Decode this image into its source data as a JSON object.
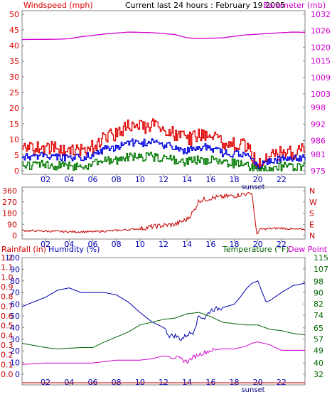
{
  "header": {
    "wind_label": "Windspeed (mph)",
    "title": "Current last 24 hours : February 19 2005",
    "baro_label": "Barometer (mb)"
  },
  "colors": {
    "wind": "#e00000",
    "wind_avg": "#0000e0",
    "wind_min": "#007a00",
    "baro": "#d000d0",
    "direction": "#c80000",
    "humidity": "#0000b0",
    "temperature": "#006400",
    "dewpoint": "#d000d0",
    "rainfall": "#cc0000",
    "frame": "#808080"
  },
  "chart_data": [
    {
      "type": "line",
      "title": "Current last 24 hours : February 19 2005",
      "x_ticks": [
        "02",
        "04",
        "06",
        "08",
        "10",
        "12",
        "14",
        "16",
        "18",
        "20",
        "22"
      ],
      "x_range_hours": [
        0,
        24
      ],
      "annotation": "sunset",
      "annotation_hour": 19.6,
      "ylabel_left": "Windspeed (mph)",
      "ylim_left": [
        0,
        50
      ],
      "yticks_left": [
        0,
        5,
        10,
        15,
        20,
        25,
        30,
        35,
        40,
        45,
        50
      ],
      "ylabel_right": "Barometer (mb)",
      "ylim_right": [
        975,
        1032
      ],
      "yticks_right": [
        975,
        981,
        986,
        992,
        998,
        1003,
        1009,
        1015,
        1020,
        1026,
        1032
      ],
      "series": [
        {
          "name": "Windspeed (mph)",
          "axis": "left",
          "hours": [
            0,
            2,
            4,
            6,
            7,
            8,
            9,
            10,
            11,
            12,
            13,
            14,
            15,
            16,
            17,
            18,
            19,
            19.5,
            20,
            21,
            22,
            23,
            24
          ],
          "values": [
            9,
            10,
            8,
            10,
            13,
            14,
            17,
            16,
            17,
            15,
            14,
            12,
            14,
            14,
            11,
            11,
            10,
            7,
            4,
            7,
            8,
            8,
            9
          ]
        },
        {
          "name": "Barometer (mb)",
          "axis": "right",
          "hours": [
            0,
            3,
            4,
            5,
            7,
            9,
            11,
            13,
            14,
            15,
            17,
            19,
            21,
            22,
            23,
            24
          ],
          "values": [
            1022.8,
            1022.9,
            1023.1,
            1023.8,
            1024.8,
            1025.5,
            1025.3,
            1024.6,
            1023.4,
            1023.1,
            1023.4,
            1024.5,
            1025.0,
            1025.3,
            1025.5,
            1025.4
          ]
        }
      ]
    },
    {
      "type": "line",
      "x_ticks": [
        "02",
        "04",
        "06",
        "08",
        "10",
        "12",
        "14",
        "16",
        "18",
        "20",
        "22"
      ],
      "x_range_hours": [
        0,
        24
      ],
      "ylim_left": [
        0,
        360
      ],
      "yticks_left": [
        0,
        90,
        180,
        270,
        360
      ],
      "yticks_right_labels": [
        "N",
        "W",
        "S",
        "E",
        "N"
      ],
      "series": [
        {
          "name": "Wind direction",
          "hours": [
            0,
            2,
            4,
            6,
            8,
            10,
            11,
            12,
            13,
            14,
            14.6,
            15,
            16,
            17,
            18,
            19.3,
            19.5,
            19.9,
            20.2,
            21,
            22,
            23,
            24
          ],
          "values": [
            40,
            35,
            30,
            30,
            40,
            55,
            70,
            80,
            90,
            130,
            200,
            280,
            300,
            310,
            320,
            340,
            340,
            10,
            50,
            55,
            60,
            50,
            50
          ]
        }
      ]
    },
    {
      "type": "line",
      "x_ticks": [
        "02",
        "04",
        "06",
        "08",
        "10",
        "12",
        "14",
        "16",
        "18",
        "20",
        "22"
      ],
      "x_range_hours": [
        0,
        24
      ],
      "annotation": "sunset",
      "annotation_hour": 19.6,
      "ylabel_rain": "Rainfall (in)",
      "ylim_rain": [
        0,
        1.2
      ],
      "yticks_rain": [
        "0.0",
        "0.1",
        "0.2",
        "0.3",
        "0.4",
        "0.5",
        "0.6",
        "0.7",
        "0.8",
        "0.9",
        "1.0",
        "1.1",
        "1.2"
      ],
      "ylabel_humidity": "Humidity (%)",
      "ylim_humidity": [
        0,
        100
      ],
      "yticks_humidity": [
        0,
        10,
        20,
        30,
        40,
        50,
        60,
        70,
        80,
        90,
        100
      ],
      "ylabel_right": "Temperature (°F)",
      "ylabel_right2": "Dew Point",
      "ylim_right": [
        32,
        115
      ],
      "yticks_right": [
        32,
        40,
        49,
        57,
        65,
        74,
        82,
        90,
        98,
        107,
        115
      ],
      "series": [
        {
          "name": "Humidity (%)",
          "axis": "humidity",
          "hours": [
            0,
            1,
            2,
            3,
            4,
            5,
            6,
            7,
            8,
            9,
            10,
            11,
            12,
            12.5,
            13,
            13.5,
            14,
            14.5,
            15,
            15.5,
            16,
            17,
            18,
            18.5,
            19,
            19.5,
            20,
            20.3,
            20.7,
            21,
            22,
            23,
            24
          ],
          "values": [
            58,
            62,
            66,
            72,
            74,
            70,
            70,
            70,
            68,
            62,
            53,
            45,
            40,
            33,
            33,
            30,
            34,
            36,
            50,
            48,
            55,
            57,
            60,
            66,
            73,
            78,
            80,
            72,
            62,
            63,
            70,
            76,
            78
          ]
        },
        {
          "name": "Temperature (°F)",
          "axis": "right",
          "hours": [
            0,
            2,
            3,
            5,
            6,
            7,
            9,
            10,
            12,
            13,
            14,
            15,
            16,
            17,
            18,
            19,
            20,
            21,
            22,
            23,
            24
          ],
          "values": [
            54,
            51,
            50,
            51,
            51,
            55,
            62,
            67,
            71,
            72,
            75,
            76,
            73,
            69,
            68,
            67,
            67,
            64,
            63,
            61,
            60
          ]
        },
        {
          "name": "Dew Point",
          "axis": "right",
          "hours": [
            0,
            2,
            4,
            6,
            7,
            8,
            9,
            10,
            11,
            12,
            13,
            14,
            14.5,
            15,
            16,
            17,
            18,
            19,
            19.5,
            20,
            21,
            22,
            23,
            24
          ],
          "values": [
            39,
            40,
            40,
            40,
            41,
            42,
            42,
            42,
            43,
            45,
            44,
            41,
            44,
            46,
            49,
            50,
            50,
            52,
            54,
            55,
            53,
            49,
            49,
            49
          ]
        },
        {
          "name": "Rainfall (in)",
          "axis": "rain",
          "hours": [
            0,
            24
          ],
          "values": [
            0,
            0
          ]
        }
      ]
    }
  ]
}
